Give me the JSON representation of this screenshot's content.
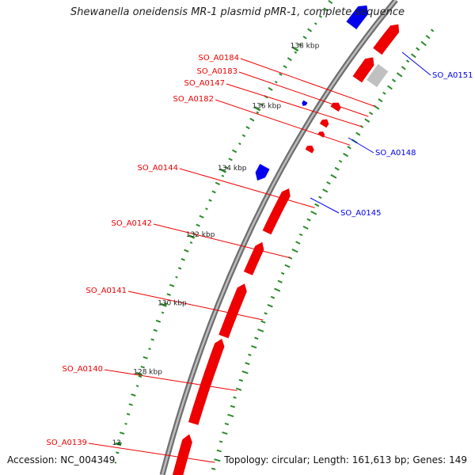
{
  "title": "Shewanella oneidensis MR-1 plasmid pMR-1, complete sequence",
  "accession_text": "Accession: NC_004349",
  "info_text": "Topology: circular; Length: 161,613 bp; Genes: 149",
  "colors": {
    "forward": "#ee0000",
    "reverse": "#0000ee",
    "other": "#c0c0c0",
    "backbone": "#8a8a8a",
    "gc": "#2a8a2a"
  },
  "ticks": [
    "140 kbp",
    "138 kbp",
    "136 kbp",
    "134 kbp",
    "132 kbp",
    "130 kbp",
    "128 kbp",
    "12"
  ],
  "genes_left": [
    "SO_A0184",
    "SO_A0183",
    "SO_A0147",
    "SO_A0182",
    "SO_A0144",
    "SO_A0142",
    "SO_A0141",
    "SO_A0140",
    "SO_A0139"
  ],
  "genes_right": [
    "SO_A0151",
    "SO_A0148",
    "SO_A0145"
  ]
}
